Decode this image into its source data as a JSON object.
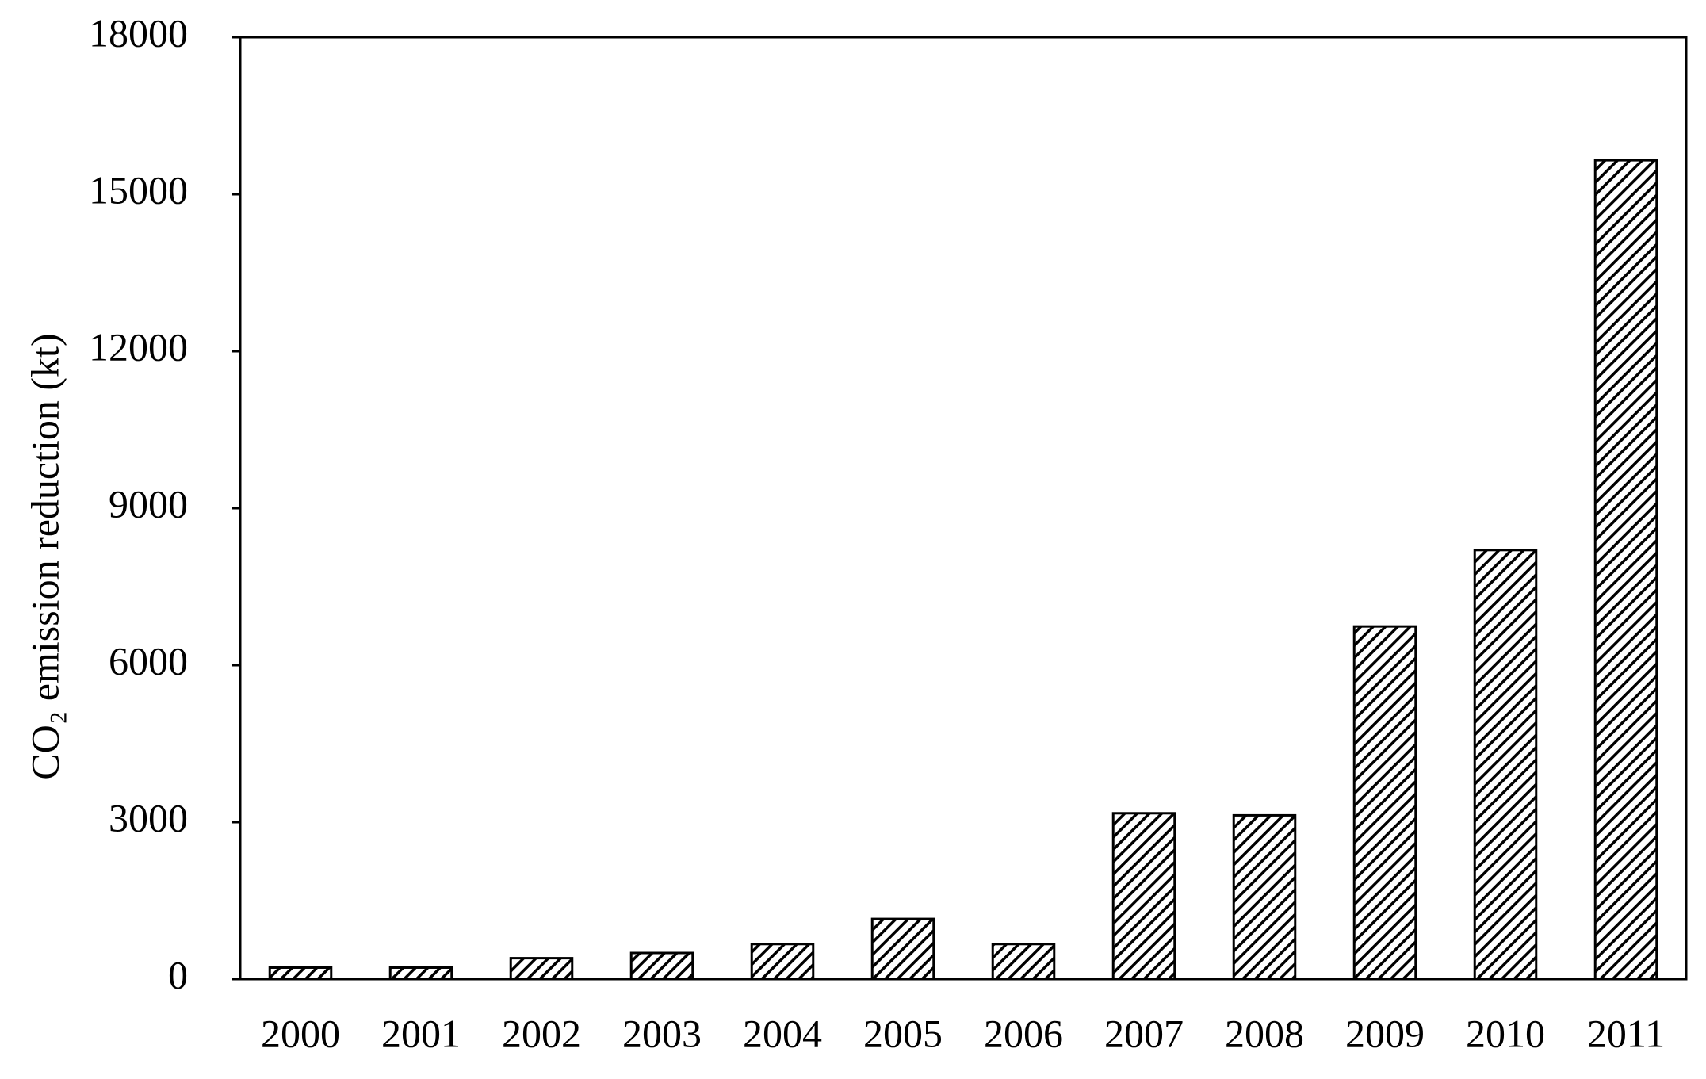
{
  "chart_data": {
    "type": "bar",
    "y_label": "CO₂ emission reduction (kt)",
    "categories": [
      "2000",
      "2001",
      "2002",
      "2003",
      "2004",
      "2005",
      "2006",
      "2007",
      "2008",
      "2009",
      "2010",
      "2011"
    ],
    "values": [
      220,
      220,
      400,
      500,
      670,
      1150,
      670,
      3170,
      3130,
      6740,
      8200,
      15650
    ],
    "color": "#000000",
    "ylim": [
      0,
      18000
    ],
    "yticks": [
      0,
      3000,
      6000,
      9000,
      12000,
      15000,
      18000
    ],
    "grid": false
  }
}
